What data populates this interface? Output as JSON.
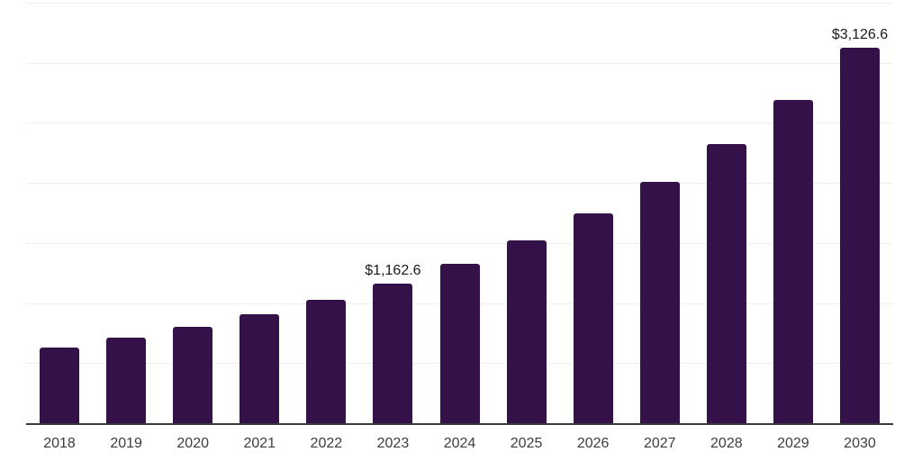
{
  "chart_data": {
    "type": "bar",
    "categories": [
      "2018",
      "2019",
      "2020",
      "2021",
      "2022",
      "2023",
      "2024",
      "2025",
      "2026",
      "2027",
      "2028",
      "2029",
      "2030"
    ],
    "values": [
      633,
      710,
      805,
      910,
      1029,
      1162.6,
      1327,
      1524,
      1750,
      2005,
      2325,
      2692,
      3126.6
    ],
    "value_labels": {
      "2023": "$1,162.6",
      "2030": "$3,126.6"
    },
    "ylim": [
      0,
      3500
    ],
    "gridline_step": 500,
    "grid": "horizontal",
    "legend": "none",
    "colors": {
      "bar": "#351149",
      "axis_line": "#3a3a3a",
      "gridline": "#eeeeee",
      "value_label": "#1a1a1a",
      "tick_label": "#3d3d3d",
      "background": "#ffffff"
    }
  }
}
